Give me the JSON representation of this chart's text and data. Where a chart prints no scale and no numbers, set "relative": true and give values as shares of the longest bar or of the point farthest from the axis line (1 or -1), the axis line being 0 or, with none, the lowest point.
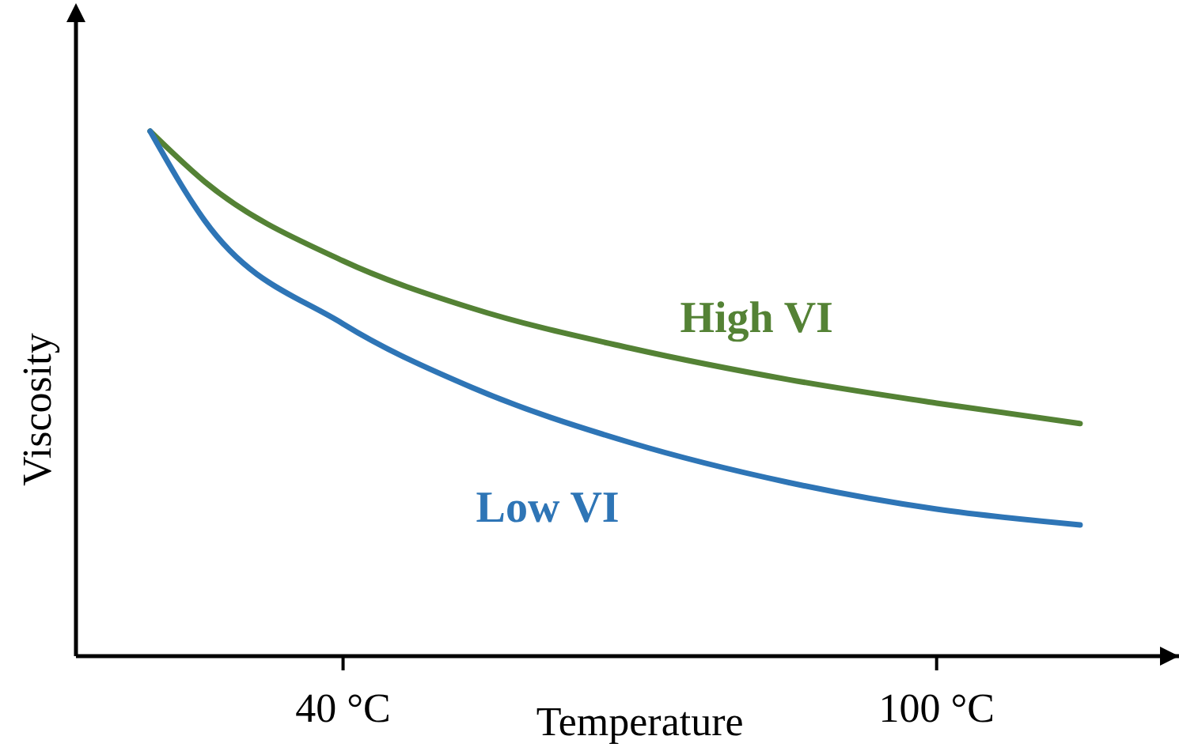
{
  "chart_data": {
    "type": "line",
    "relative": true,
    "xlabel": "Temperature",
    "ylabel": "Viscosity",
    "xlim": [
      13,
      124.5
    ],
    "xticks": [
      {
        "value": 40,
        "label": "40 °C"
      },
      {
        "value": 100,
        "label": "100 °C"
      }
    ],
    "x": [
      20.5,
      26,
      40,
      53,
      69,
      85,
      100,
      114.5
    ],
    "series": [
      {
        "name": "High VI",
        "color": "#548235",
        "values": [
          1.0,
          0.904,
          0.753,
          0.663,
          0.587,
          0.527,
          0.482,
          0.443
        ]
      },
      {
        "name": "Low VI",
        "color": "#2e75b6",
        "values": [
          1.0,
          0.83,
          0.633,
          0.512,
          0.407,
          0.331,
          0.28,
          0.25
        ]
      }
    ],
    "grid": false,
    "marker": "none",
    "line_style": "solid"
  }
}
